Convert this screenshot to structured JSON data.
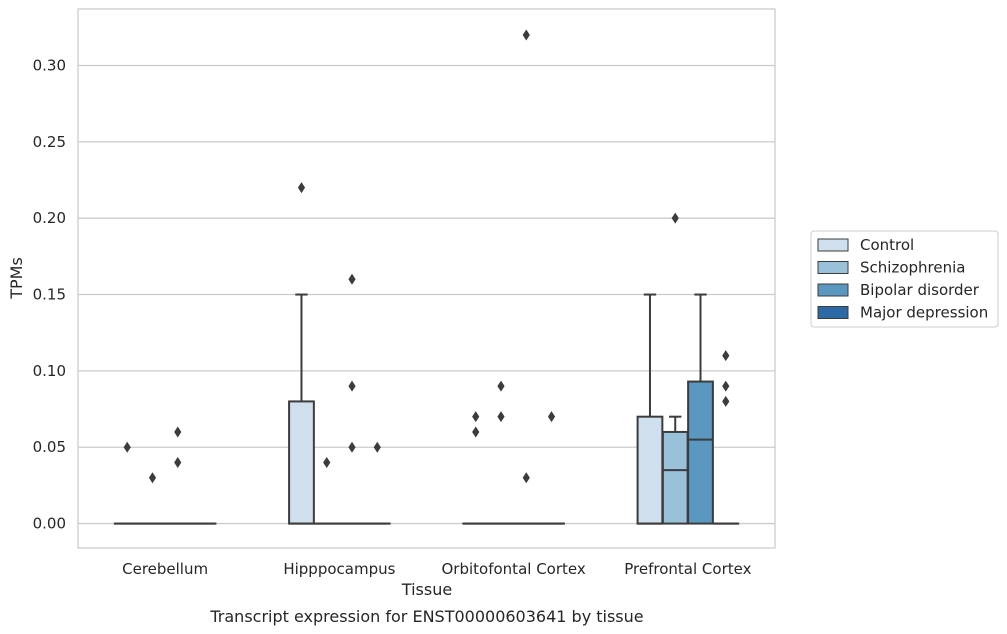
{
  "chart_data": {
    "type": "box",
    "title": "",
    "caption": "Transcript expression for ENST00000603641 by tissue",
    "xlabel": "Tissue",
    "ylabel": "TPMs",
    "ylim": [
      -0.016,
      0.337
    ],
    "yticks": [
      "0.00",
      "0.05",
      "0.10",
      "0.15",
      "0.20",
      "0.25",
      "0.30"
    ],
    "grid": "horizontal",
    "legend_position": "right",
    "categories": [
      "Cerebellum",
      "Hipppocampus",
      "Orbitofontal Cortex",
      "Prefrontal Cortex"
    ],
    "series": [
      {
        "name": "Control",
        "color": "#d0dfee",
        "boxes": [
          {
            "q1": 0,
            "median": 0,
            "q3": 0,
            "whisker_low": 0,
            "whisker_high": 0,
            "outliers": [
              0.05
            ]
          },
          {
            "q1": 0,
            "median": 0,
            "q3": 0.08,
            "whisker_low": 0,
            "whisker_high": 0.15,
            "outliers": [
              0.22
            ]
          },
          {
            "q1": 0,
            "median": 0,
            "q3": 0,
            "whisker_low": 0,
            "whisker_high": 0,
            "outliers": [
              0.06,
              0.07
            ]
          },
          {
            "q1": 0,
            "median": 0,
            "q3": 0.07,
            "whisker_low": 0,
            "whisker_high": 0.15,
            "outliers": []
          }
        ]
      },
      {
        "name": "Schizophrenia",
        "color": "#9ac1da",
        "boxes": [
          {
            "q1": 0,
            "median": 0,
            "q3": 0,
            "whisker_low": 0,
            "whisker_high": 0,
            "outliers": [
              0.03
            ]
          },
          {
            "q1": 0,
            "median": 0,
            "q3": 0,
            "whisker_low": 0,
            "whisker_high": 0,
            "outliers": [
              0.04
            ]
          },
          {
            "q1": 0,
            "median": 0,
            "q3": 0,
            "whisker_low": 0,
            "whisker_high": 0,
            "outliers": [
              0.07,
              0.09
            ]
          },
          {
            "q1": 0,
            "median": 0.035,
            "q3": 0.06,
            "whisker_low": 0,
            "whisker_high": 0.07,
            "outliers": [
              0.2
            ]
          }
        ]
      },
      {
        "name": "Bipolar disorder",
        "color": "#5a97c1",
        "boxes": [
          {
            "q1": 0,
            "median": 0,
            "q3": 0,
            "whisker_low": 0,
            "whisker_high": 0,
            "outliers": [
              0.04,
              0.06
            ]
          },
          {
            "q1": 0,
            "median": 0,
            "q3": 0,
            "whisker_low": 0,
            "whisker_high": 0,
            "outliers": [
              0.05,
              0.09,
              0.16
            ]
          },
          {
            "q1": 0,
            "median": 0,
            "q3": 0,
            "whisker_low": 0,
            "whisker_high": 0,
            "outliers": [
              0.03,
              0.32
            ]
          },
          {
            "q1": 0,
            "median": 0.055,
            "q3": 0.093,
            "whisker_low": 0,
            "whisker_high": 0.15,
            "outliers": []
          }
        ]
      },
      {
        "name": "Major depression",
        "color": "#2c6aa6",
        "boxes": [
          {
            "q1": 0,
            "median": 0,
            "q3": 0,
            "whisker_low": 0,
            "whisker_high": 0,
            "outliers": []
          },
          {
            "q1": 0,
            "median": 0,
            "q3": 0,
            "whisker_low": 0,
            "whisker_high": 0,
            "outliers": [
              0.05
            ]
          },
          {
            "q1": 0,
            "median": 0,
            "q3": 0,
            "whisker_low": 0,
            "whisker_high": 0,
            "outliers": [
              0.07
            ]
          },
          {
            "q1": 0,
            "median": 0,
            "q3": 0,
            "whisker_low": 0,
            "whisker_high": 0,
            "outliers": [
              0.08,
              0.09,
              0.11
            ]
          }
        ]
      }
    ]
  }
}
